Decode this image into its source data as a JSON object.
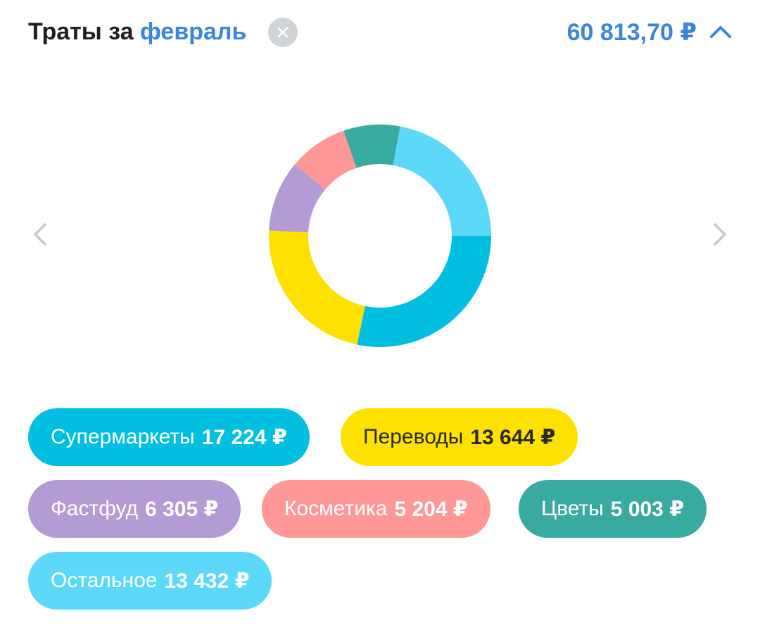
{
  "header": {
    "title_prefix": "Траты за",
    "month": "февраль",
    "total": "60 813,70 ₽"
  },
  "icons": {
    "clear": "close-icon",
    "collapse": "chevron-up-icon",
    "prev": "chevron-left-icon",
    "next": "chevron-right-icon"
  },
  "colors": {
    "accent": "#3a86d8",
    "supermarkets": "#00bfe1",
    "transfers": "#ffe100",
    "fastfood": "#b49bd4",
    "cosmetics": "#ff9797",
    "flowers": "#39aa9f",
    "other": "#5cd9f8"
  },
  "categories": [
    {
      "label": "Супермаркеты",
      "amount": "17 224 ₽",
      "value": 17224,
      "color": "#00bfe1"
    },
    {
      "label": "Переводы",
      "amount": "13 644 ₽",
      "value": 13644,
      "color": "#ffe100"
    },
    {
      "label": "Фастфуд",
      "amount": "6 305 ₽",
      "value": 6305,
      "color": "#b49bd4"
    },
    {
      "label": "Косметика",
      "amount": "5 204 ₽",
      "value": 5204,
      "color": "#ff9797"
    },
    {
      "label": "Цветы",
      "amount": "5 003 ₽",
      "value": 5003,
      "color": "#39aa9f"
    },
    {
      "label": "Остальное",
      "amount": "13 432 ₽",
      "value": 13432,
      "color": "#5cd9f8"
    }
  ],
  "chart_data": {
    "type": "pie",
    "categories": [
      "Супермаркеты",
      "Переводы",
      "Фастфуд",
      "Косметика",
      "Цветы",
      "Остальное"
    ],
    "values": [
      17224,
      13644,
      6305,
      5204,
      5003,
      13432
    ]
  }
}
